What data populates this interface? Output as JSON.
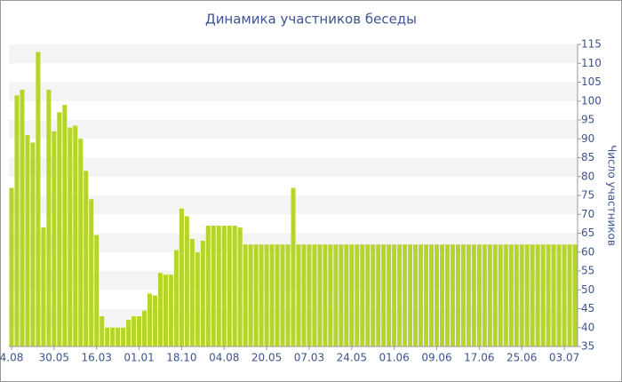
{
  "chart_data": {
    "type": "bar",
    "title": "Динамика участников беседы",
    "y_label": "Число участников",
    "categories": [
      "4.08",
      null,
      null,
      null,
      null,
      null,
      null,
      null,
      "30.05",
      null,
      null,
      null,
      null,
      null,
      null,
      null,
      "16.03",
      null,
      null,
      null,
      null,
      null,
      null,
      null,
      "01.01",
      null,
      null,
      null,
      null,
      null,
      null,
      null,
      "18.10",
      null,
      null,
      null,
      null,
      null,
      null,
      null,
      "04.08",
      null,
      null,
      null,
      null,
      null,
      null,
      null,
      "20.05",
      null,
      null,
      null,
      null,
      null,
      null,
      null,
      "07.03",
      null,
      null,
      null,
      null,
      null,
      null,
      null,
      "24.05",
      null,
      null,
      null,
      null,
      null,
      null,
      null,
      "01.06",
      null,
      null,
      null,
      null,
      null,
      null,
      null,
      "09.06",
      null,
      null,
      null,
      null,
      null,
      null,
      null,
      "17.06",
      null,
      null,
      null,
      null,
      null,
      null,
      null,
      "25.06",
      null,
      null,
      null,
      null,
      null,
      null,
      null,
      "03.07",
      null,
      null
    ],
    "values": [
      77,
      101.5,
      103,
      91,
      89,
      113,
      66.5,
      103,
      92,
      97,
      99,
      93,
      93.5,
      90,
      81.5,
      74,
      64.5,
      43,
      40,
      40,
      40,
      40,
      42,
      43,
      43,
      44.5,
      49,
      48.5,
      54.5,
      54,
      54,
      60.5,
      71.5,
      69.5,
      63.5,
      60,
      63,
      67,
      67,
      67,
      67,
      67,
      67,
      66.5,
      62,
      62,
      62,
      62,
      62,
      62,
      62,
      62,
      62,
      77,
      62,
      62,
      62,
      62,
      62,
      62,
      62,
      62,
      62,
      62,
      62,
      62,
      62,
      62,
      62,
      62,
      62,
      62,
      62,
      62,
      62,
      62,
      62,
      62,
      62,
      62,
      62,
      62,
      62,
      62,
      62,
      62,
      62,
      62,
      62,
      62,
      62,
      62,
      62,
      62,
      62,
      62,
      62,
      62,
      62,
      62,
      62,
      62,
      62,
      62,
      62,
      62,
      62
    ],
    "color": "#b5d52a",
    "ylim": [
      35,
      115
    ],
    "yticks": [
      35,
      40,
      45,
      50,
      55,
      60,
      65,
      70,
      75,
      80,
      85,
      90,
      95,
      100,
      105,
      110,
      115
    ],
    "grid": "bands",
    "y_axis_side": "right"
  }
}
